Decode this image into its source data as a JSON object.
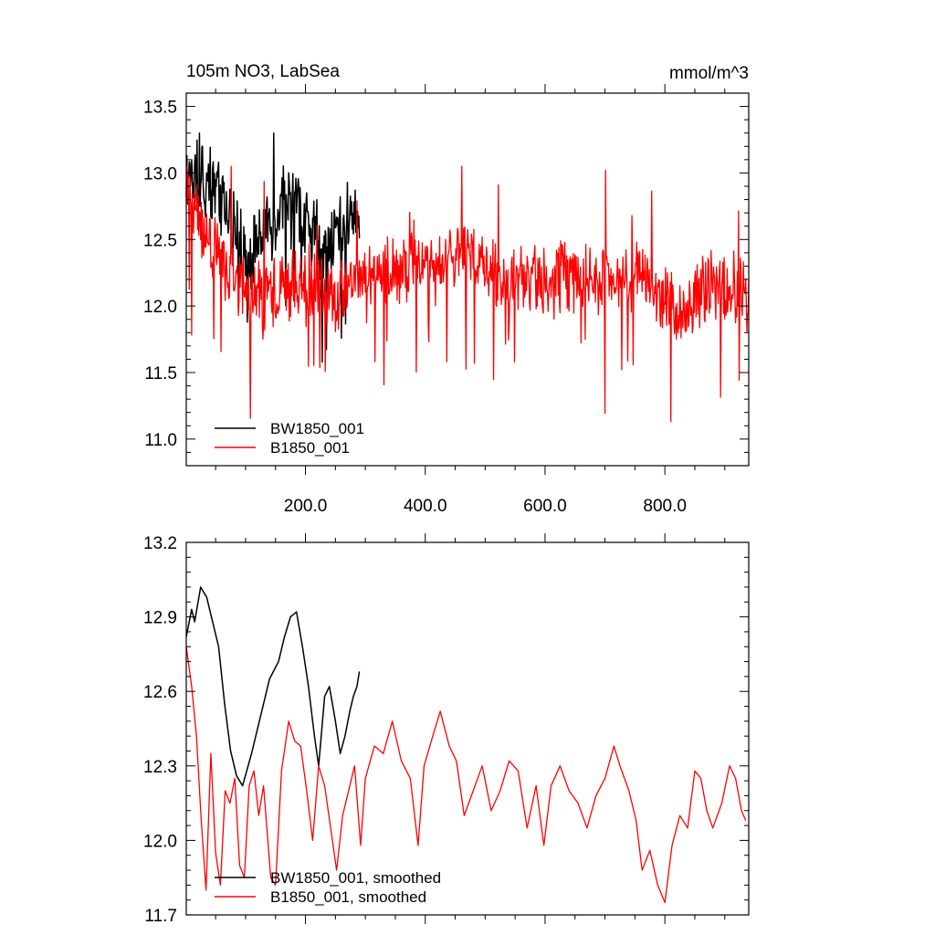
{
  "chart_data": [
    {
      "type": "line",
      "title": "105m NO3, LabSea",
      "units": "mmol/m^3",
      "xlabel": "",
      "ylabel": "",
      "xlim": [
        1,
        940
      ],
      "ylim": [
        10.8,
        13.6
      ],
      "xticks": [
        200,
        400,
        600,
        800
      ],
      "xtick_labels": [
        "200.0",
        "400.0",
        "600.0",
        "800.0"
      ],
      "yticks": [
        11.0,
        11.5,
        12.0,
        12.5,
        13.0,
        13.5
      ],
      "ytick_labels": [
        "11.0",
        "11.5",
        "12.0",
        "12.5",
        "13.0",
        "13.5"
      ],
      "grid": false,
      "legend_position": "bottom-left",
      "series": [
        {
          "name": "BW1850_001",
          "color": "#000000",
          "x_range": [
            1,
            290
          ],
          "mean_profile": [
            [
              1,
              12.95
            ],
            [
              40,
              12.95
            ],
            [
              70,
              12.7
            ],
            [
              100,
              12.35
            ],
            [
              130,
              12.5
            ],
            [
              170,
              12.8
            ],
            [
              200,
              12.65
            ],
            [
              230,
              12.4
            ],
            [
              260,
              12.6
            ],
            [
              290,
              12.75
            ]
          ],
          "min": 11.4,
          "max": 13.3
        },
        {
          "name": "B1850_001",
          "color": "#ff0000",
          "x_range": [
            1,
            940
          ],
          "mean_profile": [
            [
              1,
              12.85
            ],
            [
              30,
              12.6
            ],
            [
              60,
              12.3
            ],
            [
              100,
              12.1
            ],
            [
              150,
              12.1
            ],
            [
              200,
              12.2
            ],
            [
              250,
              12.05
            ],
            [
              300,
              12.25
            ],
            [
              400,
              12.3
            ],
            [
              480,
              12.4
            ],
            [
              520,
              12.2
            ],
            [
              600,
              12.2
            ],
            [
              700,
              12.2
            ],
            [
              760,
              12.25
            ],
            [
              820,
              11.95
            ],
            [
              880,
              12.15
            ],
            [
              940,
              12.1
            ]
          ],
          "min": 10.95,
          "max": 13.05
        }
      ]
    },
    {
      "type": "line",
      "title": "",
      "xlabel": "",
      "ylabel": "",
      "xlim": [
        1,
        940
      ],
      "ylim": [
        11.7,
        13.2
      ],
      "yticks": [
        11.7,
        12.0,
        12.3,
        12.6,
        12.9,
        13.2
      ],
      "ytick_labels": [
        "11.7",
        "12.0",
        "12.3",
        "12.6",
        "12.9",
        "13.2"
      ],
      "grid": false,
      "legend_position": "bottom-left",
      "series": [
        {
          "name": "BW1850_001, smoothed",
          "color": "#000000",
          "points": [
            [
              1,
              12.82
            ],
            [
              10,
              12.93
            ],
            [
              15,
              12.88
            ],
            [
              25,
              13.02
            ],
            [
              35,
              12.98
            ],
            [
              45,
              12.88
            ],
            [
              55,
              12.78
            ],
            [
              65,
              12.55
            ],
            [
              75,
              12.36
            ],
            [
              85,
              12.26
            ],
            [
              95,
              12.22
            ],
            [
              110,
              12.35
            ],
            [
              125,
              12.5
            ],
            [
              140,
              12.65
            ],
            [
              155,
              12.72
            ],
            [
              165,
              12.82
            ],
            [
              175,
              12.9
            ],
            [
              185,
              12.92
            ],
            [
              195,
              12.78
            ],
            [
              205,
              12.62
            ],
            [
              215,
              12.42
            ],
            [
              222,
              12.3
            ],
            [
              232,
              12.58
            ],
            [
              240,
              12.62
            ],
            [
              250,
              12.48
            ],
            [
              258,
              12.35
            ],
            [
              266,
              12.42
            ],
            [
              274,
              12.52
            ],
            [
              280,
              12.58
            ],
            [
              286,
              12.62
            ],
            [
              290,
              12.68
            ]
          ]
        },
        {
          "name": "B1850_001, smoothed",
          "color": "#ff0000",
          "points": [
            [
              1,
              12.78
            ],
            [
              10,
              12.62
            ],
            [
              18,
              12.42
            ],
            [
              26,
              12.08
            ],
            [
              34,
              11.8
            ],
            [
              42,
              12.35
            ],
            [
              50,
              11.95
            ],
            [
              58,
              11.82
            ],
            [
              66,
              12.2
            ],
            [
              74,
              12.15
            ],
            [
              82,
              12.25
            ],
            [
              90,
              11.9
            ],
            [
              98,
              11.85
            ],
            [
              106,
              12.22
            ],
            [
              114,
              12.28
            ],
            [
              122,
              12.1
            ],
            [
              130,
              12.22
            ],
            [
              142,
              11.85
            ],
            [
              150,
              11.82
            ],
            [
              160,
              12.28
            ],
            [
              172,
              12.48
            ],
            [
              182,
              12.4
            ],
            [
              192,
              12.38
            ],
            [
              202,
              12.2
            ],
            [
              212,
              12.0
            ],
            [
              222,
              12.3
            ],
            [
              232,
              12.22
            ],
            [
              242,
              12.05
            ],
            [
              252,
              11.88
            ],
            [
              262,
              12.1
            ],
            [
              272,
              12.2
            ],
            [
              282,
              12.3
            ],
            [
              292,
              11.98
            ],
            [
              300,
              12.25
            ],
            [
              315,
              12.38
            ],
            [
              330,
              12.35
            ],
            [
              345,
              12.48
            ],
            [
              360,
              12.32
            ],
            [
              375,
              12.25
            ],
            [
              388,
              11.98
            ],
            [
              398,
              12.3
            ],
            [
              410,
              12.4
            ],
            [
              425,
              12.52
            ],
            [
              440,
              12.38
            ],
            [
              452,
              12.32
            ],
            [
              465,
              12.1
            ],
            [
              480,
              12.2
            ],
            [
              495,
              12.3
            ],
            [
              510,
              12.12
            ],
            [
              525,
              12.2
            ],
            [
              540,
              12.32
            ],
            [
              555,
              12.28
            ],
            [
              570,
              12.05
            ],
            [
              585,
              12.22
            ],
            [
              598,
              11.98
            ],
            [
              610,
              12.22
            ],
            [
              625,
              12.3
            ],
            [
              640,
              12.2
            ],
            [
              655,
              12.15
            ],
            [
              670,
              12.05
            ],
            [
              685,
              12.18
            ],
            [
              700,
              12.25
            ],
            [
              715,
              12.38
            ],
            [
              725,
              12.3
            ],
            [
              740,
              12.2
            ],
            [
              752,
              12.08
            ],
            [
              762,
              11.88
            ],
            [
              775,
              11.96
            ],
            [
              788,
              11.82
            ],
            [
              800,
              11.75
            ],
            [
              812,
              11.98
            ],
            [
              825,
              12.1
            ],
            [
              838,
              12.05
            ],
            [
              850,
              12.28
            ],
            [
              860,
              12.25
            ],
            [
              870,
              12.12
            ],
            [
              880,
              12.05
            ],
            [
              895,
              12.15
            ],
            [
              908,
              12.3
            ],
            [
              918,
              12.25
            ],
            [
              928,
              12.12
            ],
            [
              935,
              12.08
            ]
          ]
        }
      ]
    }
  ]
}
